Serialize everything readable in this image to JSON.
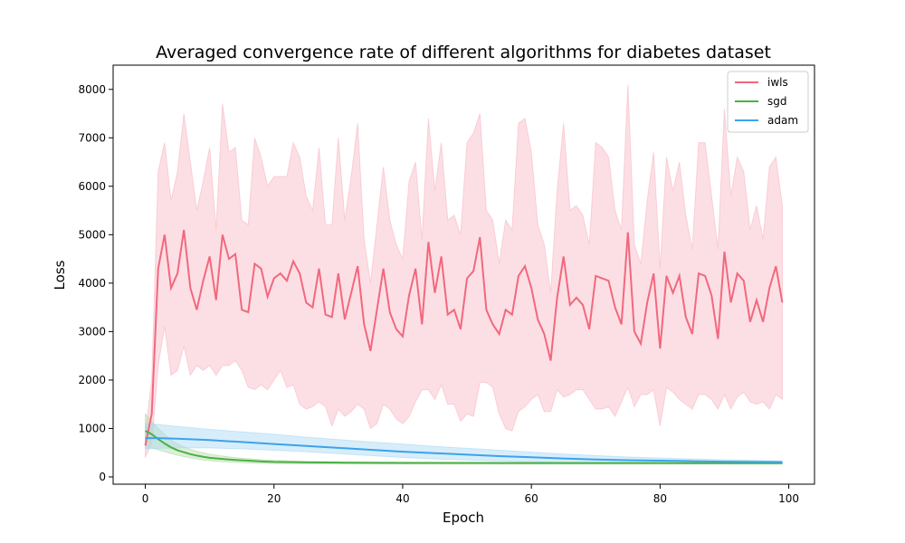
{
  "chart_data": {
    "type": "line",
    "title": "Averaged convergence rate of different algorithms for diabetes dataset",
    "xlabel": "Epoch",
    "ylabel": "Loss",
    "xlim": [
      -5,
      104
    ],
    "ylim": [
      -150,
      8500
    ],
    "xticks": [
      0,
      20,
      40,
      60,
      80,
      100
    ],
    "yticks": [
      0,
      1000,
      2000,
      3000,
      4000,
      5000,
      6000,
      7000,
      8000
    ],
    "grid": false,
    "legend_position": "top-right",
    "series": [
      {
        "name": "iwls",
        "color": "#f2687e",
        "band_color": "#f9b7c4",
        "x": [
          0,
          1,
          2,
          3,
          4,
          5,
          6,
          7,
          8,
          9,
          10,
          11,
          12,
          13,
          14,
          15,
          16,
          17,
          18,
          19,
          20,
          21,
          22,
          23,
          24,
          25,
          26,
          27,
          28,
          29,
          30,
          31,
          32,
          33,
          34,
          35,
          36,
          37,
          38,
          39,
          40,
          41,
          42,
          43,
          44,
          45,
          46,
          47,
          48,
          49,
          50,
          51,
          52,
          53,
          54,
          55,
          56,
          57,
          58,
          59,
          60,
          61,
          62,
          63,
          64,
          65,
          66,
          67,
          68,
          69,
          70,
          71,
          72,
          73,
          74,
          75,
          76,
          77,
          78,
          79,
          80,
          81,
          82,
          83,
          84,
          85,
          86,
          87,
          88,
          89,
          90,
          91,
          92,
          93,
          94,
          95,
          96,
          97,
          98,
          99
        ],
        "y": [
          650,
          1300,
          4300,
          5000,
          3900,
          4200,
          5100,
          3900,
          3450,
          4050,
          4550,
          3650,
          5000,
          4500,
          4600,
          3450,
          3400,
          4400,
          4300,
          3720,
          4100,
          4200,
          4050,
          4450,
          4200,
          3600,
          3500,
          4300,
          3350,
          3300,
          4200,
          3250,
          3800,
          4350,
          3150,
          2600,
          3450,
          4300,
          3400,
          3050,
          2900,
          3750,
          4300,
          3150,
          4850,
          3800,
          4550,
          3350,
          3450,
          3050,
          4100,
          4250,
          4950,
          3450,
          3150,
          2950,
          3450,
          3350,
          4150,
          4350,
          3900,
          3250,
          2950,
          2400,
          3700,
          4550,
          3550,
          3700,
          3550,
          3050,
          4150,
          4100,
          4050,
          3500,
          3150,
          5050,
          3000,
          2750,
          3600,
          4200,
          2650,
          4150,
          3800,
          4150,
          3300,
          2950,
          4200,
          4150,
          3750,
          2850,
          4650,
          3600,
          4200,
          4050,
          3200,
          3650,
          3200,
          3900,
          4350,
          3600
        ],
        "upper": [
          900,
          2000,
          6300,
          6900,
          5700,
          6300,
          7500,
          6500,
          5500,
          6100,
          6800,
          5100,
          7700,
          6700,
          6800,
          5300,
          5200,
          7000,
          6600,
          6000,
          6200,
          6200,
          6200,
          6900,
          6600,
          5800,
          5500,
          6800,
          5200,
          5200,
          7000,
          5300,
          6200,
          7300,
          4900,
          4000,
          5200,
          6400,
          5300,
          4800,
          4500,
          6100,
          6500,
          4900,
          7400,
          5900,
          6900,
          5300,
          5400,
          5000,
          6900,
          7100,
          7500,
          5500,
          5300,
          4400,
          5300,
          5100,
          7300,
          7400,
          6700,
          5200,
          4800,
          3800,
          5900,
          7300,
          5500,
          5600,
          5400,
          4800,
          6900,
          6800,
          6600,
          5500,
          5100,
          8100,
          4800,
          4400,
          5700,
          6700,
          4300,
          6600,
          5900,
          6500,
          5400,
          4700,
          6900,
          6900,
          5800,
          4700,
          7600,
          5800,
          6600,
          6300,
          5100,
          5600,
          4900,
          6400,
          6600,
          5600
        ],
        "lower": [
          400,
          700,
          2300,
          3100,
          2100,
          2200,
          2700,
          2100,
          2300,
          2200,
          2300,
          2100,
          2300,
          2300,
          2400,
          2200,
          1850,
          1800,
          1900,
          1800,
          2000,
          2200,
          1850,
          1900,
          1500,
          1400,
          1450,
          1550,
          1450,
          1050,
          1400,
          1250,
          1350,
          1500,
          1400,
          1000,
          1100,
          1500,
          1400,
          1200,
          1100,
          1250,
          1550,
          1800,
          1800,
          1600,
          1900,
          1500,
          1500,
          1150,
          1300,
          1250,
          1950,
          1950,
          1850,
          1300,
          1000,
          950,
          1350,
          1450,
          1600,
          1700,
          1350,
          1350,
          1800,
          1650,
          1700,
          1800,
          1800,
          1600,
          1400,
          1400,
          1450,
          1250,
          1550,
          1850,
          1450,
          1700,
          1700,
          1800,
          1050,
          1850,
          1750,
          1600,
          1500,
          1400,
          1700,
          1700,
          1600,
          1400,
          1700,
          1400,
          1650,
          1750,
          1550,
          1500,
          1550,
          1400,
          1700,
          1600
        ]
      },
      {
        "name": "sgd",
        "color": "#4bb045",
        "band_color": "#b3dca5",
        "x": [
          0,
          1,
          2,
          3,
          4,
          5,
          6,
          7,
          8,
          9,
          10,
          12,
          14,
          16,
          18,
          20,
          25,
          30,
          35,
          40,
          50,
          60,
          70,
          80,
          90,
          99
        ],
        "y": [
          950,
          880,
          780,
          690,
          610,
          550,
          510,
          470,
          440,
          415,
          395,
          370,
          350,
          335,
          320,
          310,
          300,
          295,
          292,
          290,
          288,
          287,
          286,
          286,
          285,
          285
        ],
        "upper": [
          1300,
          1150,
          1000,
          880,
          760,
          680,
          620,
          570,
          530,
          500,
          470,
          430,
          400,
          375,
          355,
          340,
          320,
          310,
          305,
          302,
          298,
          296,
          295,
          294,
          293,
          292
        ],
        "lower": [
          650,
          600,
          560,
          520,
          480,
          450,
          420,
          395,
          370,
          350,
          335,
          315,
          300,
          290,
          282,
          276,
          270,
          268,
          266,
          265,
          264,
          264,
          263,
          263,
          263,
          263
        ]
      },
      {
        "name": "adam",
        "color": "#3ba3ec",
        "band_color": "#a8d8f5",
        "x": [
          0,
          2,
          5,
          10,
          15,
          20,
          25,
          30,
          35,
          40,
          45,
          50,
          55,
          60,
          65,
          70,
          75,
          80,
          85,
          90,
          95,
          99
        ],
        "y": [
          800,
          800,
          790,
          760,
          720,
          680,
          640,
          600,
          560,
          520,
          490,
          460,
          430,
          405,
          380,
          360,
          345,
          335,
          325,
          315,
          310,
          305
        ],
        "upper": [
          1100,
          1080,
          1040,
          980,
          930,
          880,
          820,
          770,
          720,
          680,
          630,
          590,
          550,
          510,
          470,
          440,
          410,
          390,
          370,
          355,
          340,
          330
        ],
        "lower": [
          580,
          590,
          600,
          600,
          580,
          550,
          520,
          480,
          440,
          400,
          370,
          350,
          330,
          310,
          300,
          290,
          285,
          282,
          280,
          280,
          280,
          280
        ]
      }
    ]
  }
}
